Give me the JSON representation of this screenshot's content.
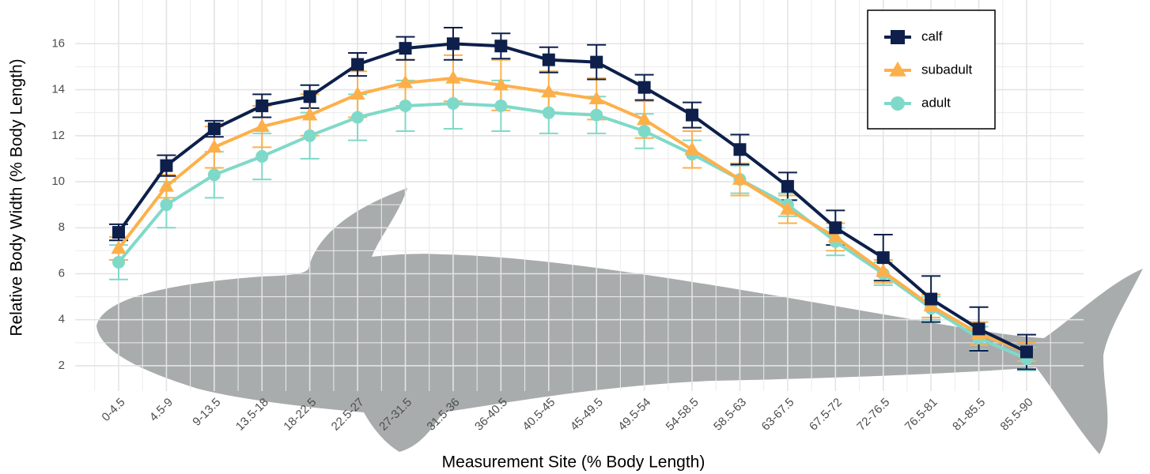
{
  "chart_data": {
    "type": "line",
    "x_label": "Measurement Site (% Body Length)",
    "y_label": "Relative Body Width (% Body Length)",
    "categories": [
      "0-4.5",
      "4.5-9",
      "9-13.5",
      "13.5-18",
      "18-22.5",
      "22.5-27",
      "27-31.5",
      "31.5-36",
      "36-40.5",
      "40.5-45",
      "45-49.5",
      "49.5-54",
      "54-58.5",
      "58.5-63",
      "63-67.5",
      "67.5-72",
      "72-76.5",
      "76.5-81",
      "81-85.5",
      "85.5-90"
    ],
    "ylim": [
      0.9,
      17.9
    ],
    "yticks": [
      2,
      4,
      6,
      8,
      10,
      12,
      14,
      16
    ],
    "grid": true,
    "legend_position": "top-right",
    "series": [
      {
        "name": "calf",
        "color": "#0d1f4a",
        "marker": "square",
        "values": [
          7.8,
          10.7,
          12.3,
          13.3,
          13.7,
          15.1,
          15.8,
          16.0,
          15.9,
          15.3,
          15.2,
          14.1,
          12.9,
          11.4,
          9.8,
          8.0,
          6.7,
          4.9,
          3.6,
          2.6
        ],
        "errors": [
          0.35,
          0.45,
          0.35,
          0.5,
          0.5,
          0.5,
          0.5,
          0.7,
          0.55,
          0.55,
          0.75,
          0.55,
          0.55,
          0.65,
          0.6,
          0.75,
          1.0,
          1.0,
          0.95,
          0.75
        ]
      },
      {
        "name": "subadult",
        "color": "#fdb04a",
        "marker": "triangle",
        "values": [
          7.1,
          9.8,
          11.5,
          12.4,
          12.9,
          13.8,
          14.3,
          14.5,
          14.2,
          13.9,
          13.6,
          12.7,
          11.4,
          10.1,
          8.8,
          7.6,
          6.1,
          4.6,
          3.4,
          2.6
        ],
        "errors": [
          0.5,
          0.5,
          0.9,
          0.9,
          0.9,
          1.0,
          1.0,
          1.0,
          1.1,
          0.9,
          0.9,
          0.8,
          0.8,
          0.7,
          0.6,
          0.6,
          0.5,
          0.5,
          0.5,
          0.4
        ]
      },
      {
        "name": "adult",
        "color": "#7fd9c9",
        "marker": "circle",
        "values": [
          6.5,
          9.0,
          10.3,
          11.1,
          12.0,
          12.8,
          13.3,
          13.4,
          13.3,
          13.0,
          12.9,
          12.2,
          11.2,
          10.1,
          9.0,
          7.4,
          6.0,
          4.5,
          3.2,
          2.3
        ],
        "errors": [
          0.75,
          1.0,
          1.0,
          1.0,
          1.0,
          1.0,
          1.1,
          1.1,
          1.1,
          0.9,
          0.8,
          0.75,
          0.6,
          0.6,
          0.5,
          0.6,
          0.5,
          0.5,
          0.5,
          0.5
        ]
      }
    ]
  }
}
